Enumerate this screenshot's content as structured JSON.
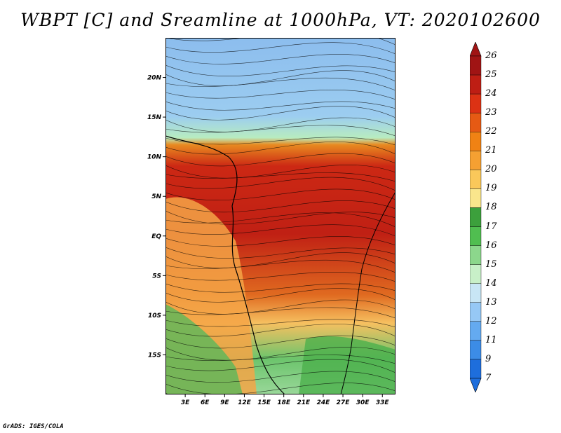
{
  "title": "WBPT [C] and Sreamline at 1000hPa, VT: 2020102600",
  "credit": "GrADS: IGES/COLA",
  "map": {
    "lon_ticks": [
      "3E",
      "6E",
      "9E",
      "12E",
      "15E",
      "18E",
      "21E",
      "24E",
      "27E",
      "30E",
      "33E"
    ],
    "lat_ticks": [
      "20N",
      "15N",
      "10N",
      "5N",
      "EQ",
      "5S",
      "10S",
      "15S"
    ],
    "lon_range": [
      0,
      35
    ],
    "lat_range": [
      -20,
      25
    ]
  },
  "colorbar": {
    "labels": [
      "26",
      "25",
      "24",
      "23",
      "22",
      "21",
      "20",
      "19",
      "18",
      "17",
      "16",
      "15",
      "14",
      "13",
      "12",
      "11",
      "9",
      "7"
    ],
    "colors": [
      "#a01414",
      "#be1e14",
      "#dc3214",
      "#e65a14",
      "#f08214",
      "#f5a032",
      "#fac85a",
      "#fae68c",
      "#3ca03c",
      "#50be50",
      "#8cd78c",
      "#c8f0c8",
      "#c8e6f5",
      "#96c8f5",
      "#64aaf0",
      "#3c8ce6",
      "#1e6edc"
    ],
    "under_color": "#1e6edc",
    "over_color": "#a01414"
  }
}
